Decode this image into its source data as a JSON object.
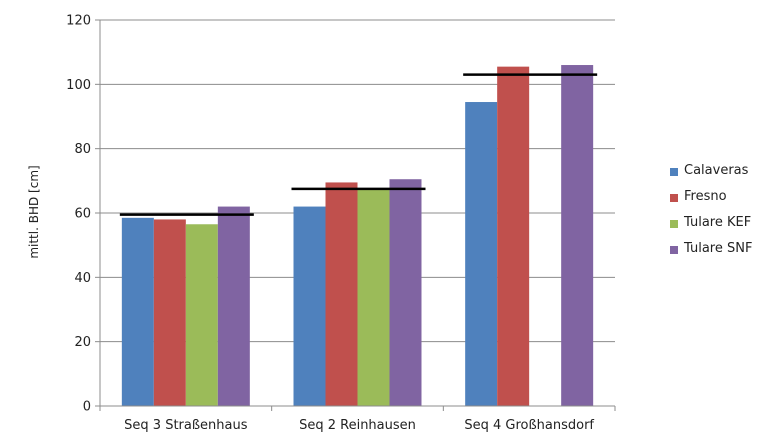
{
  "chart_data": {
    "type": "bar",
    "title": "",
    "xlabel": "",
    "ylabel": "mittl. BHD [cm]",
    "ylim": [
      0,
      120
    ],
    "yticks": [
      0,
      20,
      40,
      60,
      80,
      100,
      120
    ],
    "grid": true,
    "legend_position": "right",
    "categories": [
      "Seq 3 Straßenhaus",
      "Seq 2 Reinhausen",
      "Seq 4 Großhansdorf"
    ],
    "series": [
      {
        "name": "Calaveras",
        "color": "#4F81BD",
        "values": [
          58.5,
          62,
          94.5
        ]
      },
      {
        "name": "Fresno",
        "color": "#C0504D",
        "values": [
          58,
          69.5,
          105.5
        ]
      },
      {
        "name": "Tulare KEF",
        "color": "#9BBB59",
        "values": [
          56.5,
          67.5,
          null
        ]
      },
      {
        "name": "Tulare SNF",
        "color": "#8064A2",
        "values": [
          62,
          70.5,
          106
        ]
      }
    ],
    "reference_lines": [
      {
        "category": "Seq 3 Straßenhaus",
        "value": 59.5
      },
      {
        "category": "Seq 2 Reinhausen",
        "value": 67.5
      },
      {
        "category": "Seq 4 Großhansdorf",
        "value": 103
      }
    ]
  }
}
